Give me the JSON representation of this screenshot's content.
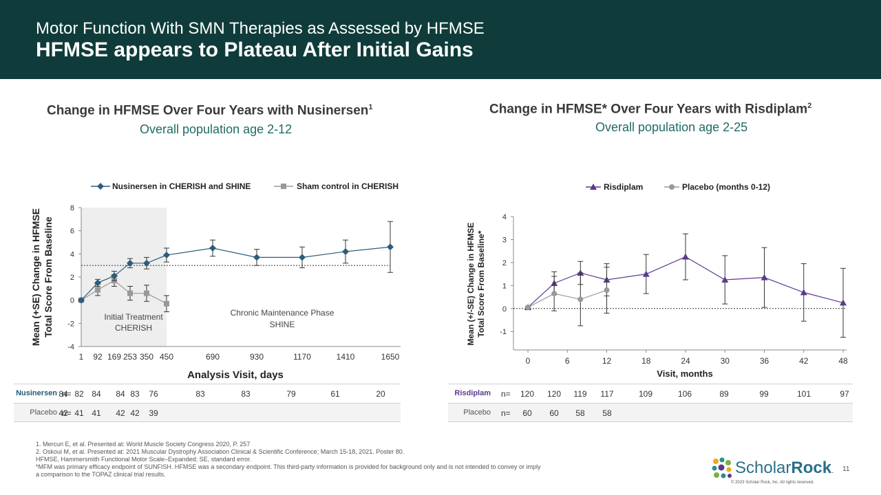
{
  "header": {
    "subtitle": "Motor Function With SMN Therapies as Assessed by HFMSE",
    "title": "HFMSE appears to Plateau After Initial Gains"
  },
  "left_panel": {
    "title_main": "Change in HFMSE Over Four Years with Nusinersen",
    "title_sup": "1",
    "subtitle": "Overall population age 2-12"
  },
  "right_panel": {
    "title_main": "Change in HFMSE* Over Four Years with Risdiplam",
    "title_sup": "2",
    "subtitle": "Overall population age 2-25"
  },
  "chart_data": [
    {
      "type": "line",
      "title": "Change in HFMSE Over Four Years with Nusinersen",
      "xlabel": "Analysis Visit, days",
      "ylabel_lines": [
        "Mean (+SE) Change in HFMSE",
        "Total Score From Baseline"
      ],
      "ylim": [
        -4,
        8
      ],
      "yticks": [
        -4,
        -2,
        0,
        2,
        4,
        6,
        8
      ],
      "categories": [
        "1",
        "92",
        "169",
        "253",
        "350",
        "450",
        "690",
        "930",
        "1170",
        "1410",
        "1650"
      ],
      "reference_line": 3,
      "shaded_region_label_lines": [
        "Initial Treatment",
        "CHERISH"
      ],
      "region_label_lines": [
        "Chronic Maintenance Phase",
        "SHINE"
      ],
      "series": [
        {
          "name": "Nusinersen  in CHERISH and SHINE",
          "marker": "diamond",
          "color": "#2e5c7a",
          "x": [
            1,
            92,
            169,
            253,
            350,
            450,
            690,
            930,
            1170,
            1410,
            1650
          ],
          "values": [
            0,
            1.5,
            2.1,
            3.2,
            3.2,
            3.9,
            4.5,
            3.7,
            3.7,
            4.2,
            4.6
          ],
          "errors": [
            0.1,
            0.3,
            0.4,
            0.4,
            0.5,
            0.6,
            0.7,
            0.7,
            0.9,
            1.0,
            2.2
          ]
        },
        {
          "name": "Sham control in CHERISH",
          "marker": "square",
          "color": "#999999",
          "x": [
            1,
            92,
            169,
            253,
            350,
            450
          ],
          "values": [
            0,
            0.9,
            1.7,
            0.6,
            0.6,
            -0.3
          ],
          "errors": [
            0.1,
            0.5,
            0.5,
            0.6,
            0.7,
            0.7
          ]
        }
      ],
      "n_table": {
        "rows": [
          {
            "label": "Nusinersen",
            "prefix": "n=",
            "values": [
              "84",
              "82",
              "84",
              "84",
              "83",
              "76",
              "83",
              "83",
              "79",
              "61",
              "20"
            ]
          },
          {
            "label": "Placebo",
            "prefix": "n=",
            "values": [
              "42",
              "41",
              "41",
              "42",
              "42",
              "39",
              "",
              "",
              "",
              "",
              ""
            ]
          }
        ]
      }
    },
    {
      "type": "line",
      "title": "Change in HFMSE* Over Four Years with Risdiplam",
      "xlabel": "Visit, months",
      "ylabel_lines": [
        "Mean (+/-SE) Change in HFMSE",
        "Total Score From Baseline*"
      ],
      "ylim": [
        -1.8,
        4
      ],
      "yticks": [
        -1,
        0,
        1,
        2,
        3,
        4
      ],
      "xticks": [
        0,
        6,
        12,
        18,
        24,
        30,
        36,
        42,
        48
      ],
      "reference_line": 0,
      "series": [
        {
          "name": "Risdiplam",
          "marker": "triangle",
          "color": "#5b3a8c",
          "x": [
            0,
            4,
            8,
            12,
            18,
            24,
            30,
            36,
            42,
            48
          ],
          "values": [
            0.05,
            1.1,
            1.55,
            1.25,
            1.5,
            2.25,
            1.25,
            1.35,
            0.7,
            0.25
          ],
          "errors": [
            0.05,
            0.5,
            0.5,
            0.7,
            0.85,
            1.0,
            1.05,
            1.3,
            1.25,
            1.5
          ]
        },
        {
          "name": "Placebo (months 0-12)",
          "marker": "circle",
          "color": "#999999",
          "x": [
            0,
            4,
            8,
            12
          ],
          "values": [
            0.05,
            0.65,
            0.4,
            0.8
          ],
          "errors": [
            0.05,
            0.75,
            1.15,
            1.0
          ]
        }
      ],
      "n_table": {
        "rows": [
          {
            "label": "Risdiplam",
            "prefix": "n=",
            "values": [
              "120",
              "120",
              "119",
              "117",
              "109",
              "106",
              "89",
              "99",
              "101",
              "97"
            ]
          },
          {
            "label": "Placebo",
            "prefix": "n=",
            "values": [
              "60",
              "60",
              "58",
              "58",
              "",
              "",
              "",
              "",
              "",
              ""
            ]
          }
        ]
      }
    }
  ],
  "footnotes": [
    "1. Mercuri E, et al. Presented at: World Muscle Society Congress 2020, P. 257",
    "2. Oskoui M, et al. Presented at: 2021 Muscular Dystrophy Association Clinical & Scientific Conference; March 15-18, 2021. Poster 80.",
    "HFMSE, Hammersmith Functional Motor Scale–Expanded; SE, standard error.",
    "*MFM was primary efficacy endpoint of SUNFISH. HFMSE was a secondary endpoint. This third-party information is provided for background only and is not intended to convey or imply  a comparison to the TOPAZ clinical trial results."
  ],
  "logo": {
    "part1": "Scholar",
    "part2": "Rock",
    "mark": "."
  },
  "page_number": "11",
  "copyright": "© 2023 Scholar Rock, Inc. All rights reserved."
}
